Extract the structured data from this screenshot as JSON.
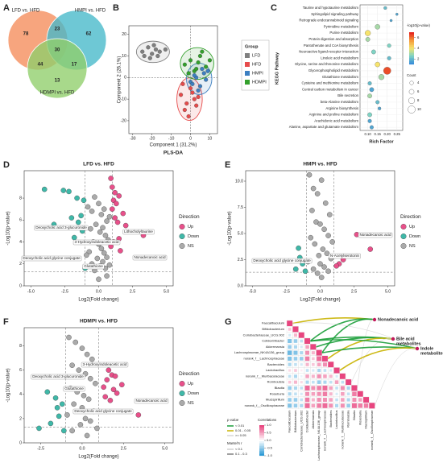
{
  "chart_data": [
    {
      "type": "venn",
      "panel": "A",
      "sets": [
        {
          "name": "LFD vs. HFD",
          "color": "#f58c5a"
        },
        {
          "name": "HMPI vs. HFD",
          "color": "#45b8c9"
        },
        {
          "name": "HDMPI vs. HFD",
          "color": "#8fce6a"
        }
      ],
      "values": [
        78,
        23,
        62,
        30,
        44,
        17,
        13
      ]
    },
    {
      "type": "scatter",
      "panel": "B",
      "title": "PLS-DA",
      "x_label": "Component 1 (31.2%)",
      "y_label": "Component 2 (26.1%)",
      "legend_title": "Group",
      "xlim": [
        -32,
        14
      ],
      "xticks": [
        -30,
        -20,
        -10,
        0,
        10
      ],
      "ylim": [
        -26,
        24
      ],
      "yticks": [
        -20,
        -10,
        0,
        10,
        20
      ],
      "series": [
        {
          "name": "LFD",
          "color": "#7f7f7f",
          "x": [
            -25,
            -22,
            -20,
            -18,
            -16,
            -21,
            -24,
            -19,
            -17,
            -13
          ],
          "y": [
            12,
            14,
            11,
            13,
            12,
            9,
            10,
            15,
            10,
            13
          ]
        },
        {
          "name": "HFD",
          "color": "#e64b4b",
          "x": [
            -5,
            -2,
            0,
            2,
            -3,
            1,
            -1,
            4,
            -4,
            3
          ],
          "y": [
            -8,
            -12,
            -5,
            -10,
            -15,
            -7,
            -18,
            -9,
            -3,
            -13
          ]
        },
        {
          "name": "HMPI",
          "color": "#3c7fc1",
          "x": [
            0,
            3,
            5,
            7,
            2,
            8,
            4,
            6,
            1,
            9
          ],
          "y": [
            -2,
            0,
            -4,
            2,
            1,
            -1,
            -6,
            4,
            -3,
            3
          ]
        },
        {
          "name": "HDMPI",
          "color": "#33a02c",
          "x": [
            -3,
            0,
            2,
            5,
            8,
            10,
            -1,
            4,
            6,
            3
          ],
          "y": [
            6,
            8,
            3,
            10,
            5,
            8,
            2,
            7,
            12,
            4
          ]
        }
      ]
    },
    {
      "type": "bubble",
      "panel": "C",
      "y_label": "KEGG Pathway",
      "x_label": "Rich Factor",
      "color_title": "-log10(p-value)",
      "size_title": "Count",
      "categories": [
        "Taurine and hypotaurine metabolism",
        "Sphingolipid signaling pathway",
        "Retrograde endocannabinoid signaling",
        "Pyrimidine metabolism",
        "Purine metabolism",
        "Protein digestion and absorption",
        "Pantothenate and CoA biosynthesis",
        "Neuroactive ligand-receptor interaction",
        "Linoleic acid metabolism",
        "Glycine, serine and threonine metabolism",
        "Glycerophospholipid metabolism",
        "Glutathione metabolism",
        "Cysteine and methionine metabolism",
        "Central carbon metabolism in cancer",
        "Bile secretion",
        "beta-Alanine metabolism",
        "Arginine biosynthesis",
        "Arginine and proline metabolism",
        "Arachidonic acid metabolism",
        "Alanine, aspartate and glutamate metabolism"
      ],
      "x": [
        0.19,
        0.25,
        0.22,
        0.15,
        0.1,
        0.1,
        0.21,
        0.13,
        0.21,
        0.15,
        0.2,
        0.17,
        0.11,
        0.12,
        0.11,
        0.15,
        0.16,
        0.11,
        0.11,
        0.12
      ],
      "values": [
        2,
        1.5,
        1.5,
        3,
        4,
        3,
        2.5,
        2.5,
        2,
        4,
        6.5,
        3,
        2,
        1.5,
        3,
        2,
        1.5,
        2.5,
        1.5,
        1.5
      ],
      "sizes": [
        3,
        2,
        2,
        6,
        7,
        5,
        4,
        5,
        4,
        6,
        10,
        7,
        4,
        5,
        5,
        4,
        3,
        5,
        4,
        4
      ],
      "xlim": [
        0.06,
        0.28
      ],
      "xticks": [
        {
          "value": 0.1,
          "label": "0.10"
        },
        {
          "value": 0.15,
          "label": "0.15"
        },
        {
          "value": 0.2,
          "label": "0.20"
        },
        {
          "value": 0.25,
          "label": "0.25"
        }
      ],
      "colorlim": [
        1,
        7
      ],
      "colorticks": [
        2,
        4,
        6
      ],
      "colors": [
        "#3b8fd9",
        "#7fd3c4",
        "#f6e36c",
        "#f59b3a",
        "#e6261f"
      ],
      "sizeticks": [
        4,
        6,
        8,
        10
      ]
    },
    {
      "type": "volcano",
      "panel": "D",
      "title": "LFD vs. HFD",
      "x_label": "Log2(Fold change)",
      "y_label": "-Log10(p-value)",
      "legend_title": "Direction",
      "xlim": [
        -5.5,
        5.5
      ],
      "xticks": [
        {
          "value": -5,
          "label": "-5.0"
        },
        -2.5,
        {
          "value": 0,
          "label": "0.0"
        },
        2.5,
        {
          "value": 5,
          "label": "5.0"
        }
      ],
      "ylim": [
        0,
        10.5
      ],
      "yticks": [
        0,
        2,
        4,
        6,
        8
      ],
      "vlines": [
        -1,
        1
      ],
      "hline": 1.3,
      "series": [
        {
          "name": "Up",
          "color": "#e8508a",
          "x": [
            0.9,
            1.0,
            1.2,
            1.5,
            1.1,
            1.3,
            1.0,
            1.8,
            1.2,
            1.4,
            2.0,
            3.3,
            1.5,
            1.1,
            0.9,
            1.6
          ],
          "y": [
            9.8,
            9.0,
            8.5,
            8.2,
            7.8,
            7.5,
            7.0,
            6.6,
            6.2,
            5.8,
            5.5,
            4.6,
            4.3,
            4.0,
            3.6,
            3.2
          ]
        },
        {
          "name": "Down",
          "color": "#3fb8a8",
          "x": [
            -4.0,
            -2.6,
            -2.2,
            -1.6,
            -1.1,
            -1.3,
            -2.0,
            -1.5,
            -3.3,
            -1.2,
            -1.8,
            -1.0
          ],
          "y": [
            8.8,
            8.7,
            8.6,
            8.0,
            7.8,
            6.4,
            6.2,
            5.8,
            5.6,
            5.0,
            4.4,
            1.6
          ]
        },
        {
          "name": "NS",
          "color": "#aaaaaa",
          "x": [
            -0.8,
            -0.5,
            -0.3,
            0,
            0.2,
            0.4,
            0.6,
            0.8,
            -0.6,
            -0.2,
            0.1,
            0.3,
            0.5,
            0.7,
            -0.4,
            0,
            0.2,
            -0.7,
            0.4,
            0.6,
            -0.1,
            0.3,
            -0.5,
            0.1,
            0.5,
            -0.3,
            0.8,
            -0.9,
            0.0,
            0.6
          ],
          "y": [
            7.2,
            6.8,
            8.1,
            7.5,
            6.5,
            7.0,
            5.9,
            6.3,
            5.2,
            5.6,
            4.9,
            5.3,
            4.6,
            4.2,
            4.0,
            3.8,
            3.4,
            3.1,
            3.0,
            2.6,
            2.5,
            2.2,
            2.0,
            1.8,
            1.6,
            1.4,
            1.9,
            2.8,
            0.6,
            0.9
          ]
        }
      ],
      "annotations": [
        "Lithocholyltaurine",
        "Nonadecanoic acid",
        "Deoxycholic acid 3-glucuronide",
        "3-Hydroxyindoleacetic acid",
        "Deoxycholic acid glycine conjugate",
        "Glutathione"
      ]
    },
    {
      "type": "volcano",
      "panel": "E",
      "title": "HMPI vs. HFD",
      "x_label": "Log2(Fold change)",
      "y_label": "-Log10(p-value)",
      "legend_title": "Direction",
      "xlim": [
        -5.5,
        5.5
      ],
      "xticks": [
        {
          "value": -5,
          "label": "-5.0"
        },
        -2.5,
        {
          "value": 0,
          "label": "0.0"
        },
        2.5,
        {
          "value": 5,
          "label": "5.0"
        }
      ],
      "ylim": [
        0,
        11
      ],
      "yticks": [
        {
          "value": 0,
          "label": "0.0"
        },
        2.5,
        {
          "value": 5,
          "label": "5.0"
        },
        7.5,
        {
          "value": 10,
          "label": "10.0"
        }
      ],
      "vlines": [
        -1,
        1
      ],
      "hline": 1.3,
      "series": [
        {
          "name": "Up",
          "color": "#e8508a",
          "x": [
            2.7,
            3.7,
            1.4,
            1.7,
            1.2
          ],
          "y": [
            4.9,
            3.5,
            2.1,
            2.5,
            1.9
          ]
        },
        {
          "name": "Down",
          "color": "#3fb8a8",
          "x": [
            -1.6,
            -1.5,
            -1.3,
            -1.8,
            -1.1
          ],
          "y": [
            3.6,
            2.7,
            2.1,
            1.6,
            1.4
          ]
        },
        {
          "name": "NS",
          "color": "#aaaaaa",
          "x": [
            -0.8,
            -0.5,
            -0.2,
            0.1,
            0.4,
            0.7,
            -0.6,
            -0.3,
            0,
            0.3,
            0.6,
            0.9,
            -0.7,
            -0.4,
            0.2,
            0.5,
            -0.1,
            0.8,
            -0.9,
            0.0,
            0.3,
            -0.5,
            0.6,
            -0.2,
            0.1
          ],
          "y": [
            10.6,
            9.3,
            8.8,
            10.1,
            7.9,
            6.8,
            7.2,
            6.1,
            5.9,
            5.4,
            4.8,
            4.2,
            4.6,
            4.0,
            3.5,
            3.1,
            2.9,
            2.6,
            2.3,
            2.1,
            1.8,
            1.6,
            1.4,
            1.2,
            0.8
          ]
        }
      ],
      "annotations": [
        "Nonadecanoic acid",
        "N-Acetylserotonin",
        "Deoxycholic acid glycine conjugate"
      ]
    },
    {
      "type": "volcano",
      "panel": "F",
      "title": "HDMPI vs. HFD",
      "x_label": "Log2(Fold change)",
      "y_label": "-Log10(p-value)",
      "legend_title": "Direction",
      "xlim": [
        -3.5,
        5.5
      ],
      "xticks": [
        -2.5,
        {
          "value": 0,
          "label": "0.0"
        },
        2.5,
        {
          "value": 5,
          "label": "5.0"
        }
      ],
      "ylim": [
        0,
        9.5
      ],
      "yticks": [
        0,
        2,
        4,
        6,
        8
      ],
      "vlines": [
        -1,
        1
      ],
      "hline": 1.3,
      "series": [
        {
          "name": "Up",
          "color": "#e8508a",
          "x": [
            1.6,
            1.8,
            2.0,
            1.5,
            2.4,
            1.3,
            1.9,
            2.1,
            1.4,
            1.7,
            3.4
          ],
          "y": [
            6.0,
            5.6,
            5.5,
            5.2,
            4.8,
            4.6,
            4.4,
            4.1,
            3.8,
            3.5,
            2.3
          ]
        },
        {
          "name": "Down",
          "color": "#3fb8a8",
          "x": [
            -2.1,
            -1.6,
            -1.5,
            -1.2,
            -2.6,
            -1.4,
            -1.9,
            -1.1
          ],
          "y": [
            4.2,
            3.7,
            2.9,
            3.2,
            1.2,
            2.2,
            1.6,
            1.0
          ]
        },
        {
          "name": "NS",
          "color": "#aaaaaa",
          "x": [
            -0.8,
            -0.4,
            0,
            0.3,
            0.6,
            -0.6,
            -0.2,
            0.2,
            0.5,
            0.8,
            -0.7,
            -0.3,
            0.1,
            0.4,
            -0.5,
            0,
            0.7,
            -0.9,
            0.2,
            0.5,
            -0.1,
            0.9,
            -0.6,
            0.3
          ],
          "y": [
            8.7,
            8.3,
            7.8,
            7.3,
            6.9,
            6.4,
            6.0,
            5.7,
            5.3,
            4.9,
            4.5,
            4.2,
            3.9,
            3.6,
            3.2,
            2.9,
            2.6,
            2.3,
            2.0,
            1.8,
            1.5,
            1.2,
            1.0,
            0.6
          ]
        }
      ],
      "annotations": [
        "3-Hydroxyindoleacetic acid",
        "Deoxycholic acid 3-glucuronide",
        "Glutathione",
        "Nonadecanoic acid",
        "Deoxycholic acid glycine conjugate"
      ]
    },
    {
      "type": "heatmap",
      "panel": "G",
      "categories": [
        "Faecalibaculum",
        "Bifidobacterium",
        "Coriobacteriaceae_UCG.002",
        "Colidextribacter",
        "Akkermansia",
        "Lachnospiraceae_NK4A136_group",
        "norank_f__Lachnospiraceae",
        "Bacteroides",
        "Lactobacillus",
        "norank_f__Muribaculaceae",
        "Romboutsia",
        "Blautia",
        "Roseburia",
        "Mucispirillum",
        "norank_f__Oscillospiraceae"
      ],
      "values": [
        [
          1
        ],
        [
          0.3,
          1
        ],
        [
          -0.2,
          0.4,
          1
        ],
        [
          -0.6,
          -0.5,
          -0.3,
          1
        ],
        [
          -0.5,
          -0.4,
          -0.2,
          0.5,
          1
        ],
        [
          -0.7,
          -0.6,
          -0.4,
          0.6,
          0.4,
          1
        ],
        [
          -0.6,
          -0.5,
          -0.5,
          0.7,
          0.3,
          0.8,
          1
        ],
        [
          -0.4,
          -0.3,
          -0.2,
          0.4,
          0.3,
          0.5,
          0.6,
          1
        ],
        [
          0.2,
          0.3,
          0.1,
          -0.3,
          -0.2,
          -0.4,
          -0.3,
          -0.2,
          1
        ],
        [
          -0.3,
          -0.4,
          -0.1,
          0.5,
          0.4,
          0.6,
          0.5,
          0.4,
          -0.2,
          1
        ],
        [
          0.3,
          0.4,
          0.2,
          -0.4,
          -0.3,
          -0.5,
          -0.4,
          -0.3,
          0.5,
          -0.3,
          1
        ],
        [
          -0.5,
          -0.4,
          -0.3,
          0.8,
          0.6,
          0.7,
          0.8,
          0.5,
          -0.3,
          0.6,
          -0.4,
          1
        ],
        [
          -0.4,
          -0.3,
          -0.2,
          0.6,
          0.5,
          0.6,
          0.7,
          0.4,
          -0.2,
          0.5,
          -0.3,
          0.7,
          1
        ],
        [
          -0.5,
          -0.5,
          -0.3,
          0.7,
          0.4,
          0.6,
          0.6,
          0.5,
          -0.3,
          0.5,
          -0.4,
          0.6,
          0.5,
          1
        ],
        [
          -0.6,
          -0.5,
          -0.4,
          0.8,
          0.5,
          0.7,
          0.8,
          0.6,
          -0.4,
          0.6,
          -0.5,
          0.8,
          0.7,
          0.7,
          1
        ]
      ],
      "colorlim": [
        -1,
        1
      ],
      "colors": [
        "#2e9bd6",
        "#ffffff",
        "#e8457f"
      ],
      "color_title": "Correlations",
      "colorticks": [
        {
          "value": 1,
          "label": "1.0"
        },
        0.5,
        {
          "value": 0,
          "label": "0.0"
        },
        -0.5,
        {
          "value": -1,
          "label": "-1.0"
        }
      ],
      "targets": [
        [
          "Nonadecanoic acid"
        ],
        [
          "Bile acid",
          "metabolites"
        ],
        [
          "Indole",
          "metabolites"
        ]
      ],
      "p_title": "p-value",
      "p_breaks": [
        0.01,
        0.05
      ],
      "p_legend": [
        {
          "label": "< 0.01",
          "color": "#1b9e3a"
        },
        {
          "label": "0.01 - 0.05",
          "color": "#c9b200"
        },
        {
          "label": ">= 0.05",
          "color": "#d6d6d6"
        }
      ],
      "r_title": "Mantel's r",
      "r_breaks": [
        0.1
      ],
      "r_legend": [
        "< 0.1",
        "0.1 - 0.3"
      ],
      "links": [
        {
          "target": 0,
          "genus": 0,
          "r": 0.15,
          "p": 0.02
        },
        {
          "target": 0,
          "genus": 3,
          "r": 0.2,
          "p": 0.005
        },
        {
          "target": 0,
          "genus": 5,
          "r": 0.18,
          "p": 0.008
        },
        {
          "target": 0,
          "genus": 11,
          "r": 0.05,
          "p": 0.3
        },
        {
          "target": 1,
          "genus": 3,
          "r": 0.22,
          "p": 0.003
        },
        {
          "target": 1,
          "genus": 4,
          "r": 0.15,
          "p": 0.004
        },
        {
          "target": 1,
          "genus": 6,
          "r": 0.12,
          "p": 0.03
        },
        {
          "target": 1,
          "genus": 10,
          "r": 0.05,
          "p": 0.4
        },
        {
          "target": 2,
          "genus": 0,
          "r": 0.05,
          "p": 0.2
        },
        {
          "target": 2,
          "genus": 3,
          "r": 0.25,
          "p": 0.002
        },
        {
          "target": 2,
          "genus": 5,
          "r": 0.2,
          "p": 0.008
        },
        {
          "target": 2,
          "genus": 8,
          "r": 0.12,
          "p": 0.04
        },
        {
          "target": 2,
          "genus": 14,
          "r": 0.05,
          "p": 0.5
        }
      ]
    }
  ]
}
